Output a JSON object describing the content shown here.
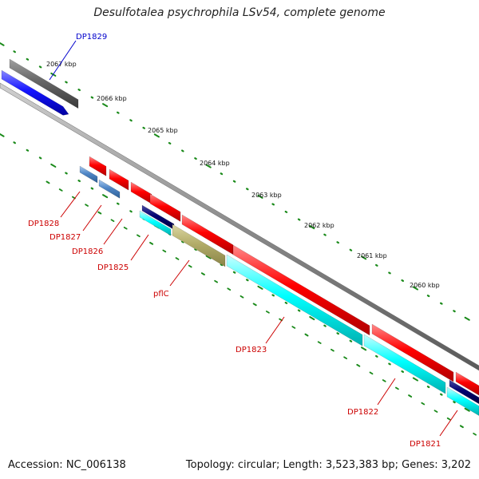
{
  "title": "Desulfotalea psychrophila LSv54, complete genome",
  "footer": {
    "accession": "Accession: NC_006138",
    "info": "Topology: circular; Length: 3,523,383 bp; Genes: 3,202"
  },
  "colors": {
    "backbone": "#8a8a8a",
    "forward_cds": "#ff0000",
    "reverse_cds": "#1414ff",
    "cyan_track": "#00ffff",
    "steel_blue": "#4f86c6",
    "olive": "#b3ad6a",
    "navy": "#000070",
    "gray_block": "#666666",
    "ticks": "#1a8a1a",
    "label_red": "#cc0000",
    "label_blue": "#0000cc"
  },
  "ticks": {
    "kbp_labels": [
      "2067 kbp",
      "2066 kbp",
      "2065 kbp",
      "2064 kbp",
      "2063 kbp",
      "2062 kbp",
      "2061 kbp",
      "2060 kbp"
    ]
  },
  "genes": {
    "labels": [
      "DP1829",
      "DP1828",
      "DP1827",
      "DP1826",
      "DP1825",
      "pflC",
      "DP1823",
      "DP1822",
      "DP1821"
    ]
  }
}
